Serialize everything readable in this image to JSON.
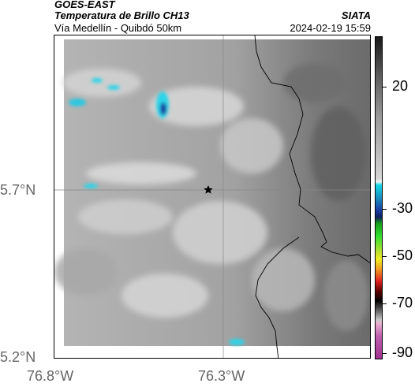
{
  "header": {
    "satellite": "GOES-EAST",
    "product": "Temperatura de Brillo CH13",
    "region": "Vía Medellín - Quibdó 50km",
    "agency": "SIATA",
    "timestamp": "2024-02-19 15:59"
  },
  "map": {
    "lat_labels": [
      "5.7°N",
      "5.2°N"
    ],
    "lon_labels": [
      "76.8°W",
      "76.3°W"
    ],
    "marker": "star-marker"
  },
  "colorbar": {
    "ticks": [
      "20",
      "-30",
      "-50",
      "-70",
      "-90"
    ]
  }
}
